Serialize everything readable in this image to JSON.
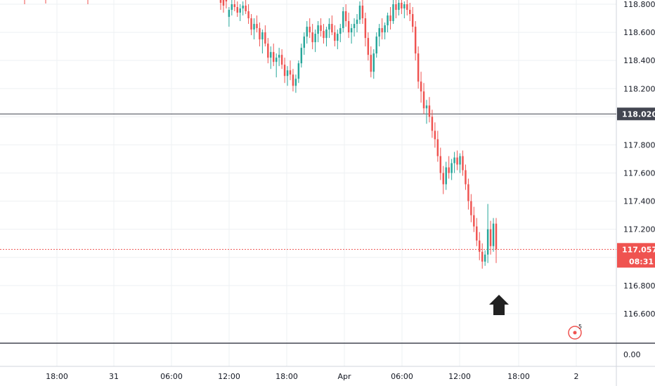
{
  "chart_data": {
    "type": "candlestick",
    "title": "",
    "xlabel": "",
    "ylabel": "",
    "ylim": [
      116.5,
      118.83
    ],
    "y_ticks": [
      "118.800",
      "118.600",
      "118.400",
      "118.200",
      "117.800",
      "117.600",
      "117.400",
      "117.200",
      "116.800",
      "116.600"
    ],
    "x_ticks": [
      "18:00",
      "31",
      "06:00",
      "12:00",
      "18:00",
      "Apr",
      "06:00",
      "12:00",
      "18:00",
      "2"
    ],
    "grid": true,
    "horizontal_line": {
      "value": 118.02,
      "label": "118.020"
    },
    "last_price": {
      "value": 117.057,
      "label": "117.057",
      "countdown": "08:31"
    },
    "volume_pane_label": "0.00",
    "candles_up_color": "#26a69a",
    "candles_down_color": "#ef5350",
    "candles": [
      [
        118.85,
        118.88,
        118.76,
        118.81
      ],
      [
        118.84,
        118.89,
        118.74,
        118.79
      ],
      [
        118.86,
        118.9,
        118.77,
        118.82
      ],
      [
        118.71,
        118.78,
        118.64,
        118.76
      ],
      [
        118.76,
        118.83,
        118.72,
        118.8
      ],
      [
        118.8,
        118.85,
        118.75,
        118.78
      ],
      [
        118.78,
        118.82,
        118.71,
        118.74
      ],
      [
        118.74,
        118.8,
        118.68,
        118.77
      ],
      [
        118.77,
        118.82,
        118.72,
        118.79
      ],
      [
        118.79,
        118.83,
        118.73,
        118.75
      ],
      [
        118.75,
        118.8,
        118.66,
        118.7
      ],
      [
        118.7,
        118.73,
        118.58,
        118.62
      ],
      [
        118.62,
        118.7,
        118.55,
        118.66
      ],
      [
        118.66,
        118.72,
        118.6,
        118.63
      ],
      [
        118.63,
        118.67,
        118.5,
        118.55
      ],
      [
        118.55,
        118.62,
        118.45,
        118.6
      ],
      [
        118.6,
        118.65,
        118.5,
        118.52
      ],
      [
        118.52,
        118.56,
        118.38,
        118.42
      ],
      [
        118.42,
        118.5,
        118.34,
        118.46
      ],
      [
        118.46,
        118.52,
        118.36,
        118.39
      ],
      [
        118.39,
        118.45,
        118.28,
        118.42
      ],
      [
        118.42,
        118.49,
        118.36,
        118.44
      ],
      [
        118.44,
        118.48,
        118.34,
        118.37
      ],
      [
        118.37,
        118.42,
        118.24,
        118.29
      ],
      [
        118.29,
        118.36,
        118.22,
        118.33
      ],
      [
        118.33,
        118.4,
        118.26,
        118.3
      ],
      [
        118.3,
        118.34,
        118.18,
        118.22
      ],
      [
        118.22,
        118.3,
        118.17,
        118.27
      ],
      [
        118.27,
        118.4,
        118.24,
        118.38
      ],
      [
        118.38,
        118.52,
        118.35,
        118.49
      ],
      [
        118.49,
        118.6,
        118.44,
        118.57
      ],
      [
        118.57,
        118.68,
        118.52,
        118.64
      ],
      [
        118.64,
        118.7,
        118.56,
        118.6
      ],
      [
        118.6,
        118.66,
        118.48,
        118.53
      ],
      [
        118.53,
        118.62,
        118.46,
        118.59
      ],
      [
        118.59,
        118.68,
        118.53,
        118.65
      ],
      [
        118.65,
        118.7,
        118.57,
        118.61
      ],
      [
        118.61,
        118.66,
        118.52,
        118.56
      ],
      [
        118.56,
        118.64,
        118.5,
        118.62
      ],
      [
        118.62,
        118.7,
        118.56,
        118.66
      ],
      [
        118.66,
        118.72,
        118.58,
        118.6
      ],
      [
        118.6,
        118.65,
        118.5,
        118.54
      ],
      [
        118.54,
        118.62,
        118.48,
        118.59
      ],
      [
        118.59,
        118.66,
        118.53,
        118.63
      ],
      [
        118.63,
        118.78,
        118.6,
        118.75
      ],
      [
        118.75,
        118.8,
        118.64,
        118.68
      ],
      [
        118.68,
        118.74,
        118.56,
        118.6
      ],
      [
        118.6,
        118.66,
        118.52,
        118.63
      ],
      [
        118.63,
        118.7,
        118.57,
        118.66
      ],
      [
        118.66,
        118.73,
        118.6,
        118.69
      ],
      [
        118.69,
        118.82,
        118.66,
        118.79
      ],
      [
        118.79,
        118.84,
        118.66,
        118.7
      ],
      [
        118.7,
        118.74,
        118.5,
        118.56
      ],
      [
        118.56,
        118.6,
        118.4,
        118.44
      ],
      [
        118.44,
        118.5,
        118.28,
        118.32
      ],
      [
        118.32,
        118.48,
        118.27,
        118.45
      ],
      [
        118.45,
        118.6,
        118.42,
        118.57
      ],
      [
        118.57,
        118.66,
        118.5,
        118.63
      ],
      [
        118.63,
        118.7,
        118.55,
        118.6
      ],
      [
        118.6,
        118.67,
        118.55,
        118.65
      ],
      [
        118.65,
        118.74,
        118.6,
        118.72
      ],
      [
        118.72,
        118.78,
        118.62,
        118.68
      ],
      [
        118.68,
        118.84,
        118.66,
        118.8
      ],
      [
        118.8,
        118.86,
        118.7,
        118.76
      ],
      [
        118.76,
        118.84,
        118.72,
        118.81
      ],
      [
        118.81,
        118.86,
        118.73,
        118.77
      ],
      [
        118.77,
        118.82,
        118.7,
        118.8
      ],
      [
        118.8,
        118.85,
        118.72,
        118.76
      ],
      [
        118.76,
        118.81,
        118.68,
        118.73
      ],
      [
        118.73,
        118.78,
        118.6,
        118.64
      ],
      [
        118.64,
        118.68,
        118.4,
        118.45
      ],
      [
        118.45,
        118.5,
        118.2,
        118.25
      ],
      [
        118.25,
        118.32,
        118.1,
        118.18
      ],
      [
        118.18,
        118.24,
        118.02,
        118.06
      ],
      [
        118.06,
        118.12,
        117.95,
        118.08
      ],
      [
        118.08,
        118.14,
        117.96,
        118.0
      ],
      [
        118.0,
        118.05,
        117.85,
        117.9
      ],
      [
        117.9,
        117.96,
        117.78,
        117.84
      ],
      [
        117.84,
        117.9,
        117.68,
        117.72
      ],
      [
        117.72,
        117.78,
        117.55,
        117.6
      ],
      [
        117.6,
        117.65,
        117.45,
        117.52
      ],
      [
        117.52,
        117.68,
        117.48,
        117.64
      ],
      [
        117.64,
        117.72,
        117.56,
        117.6
      ],
      [
        117.6,
        117.7,
        117.55,
        117.67
      ],
      [
        117.67,
        117.75,
        117.6,
        117.71
      ],
      [
        117.71,
        117.76,
        117.62,
        117.66
      ],
      [
        117.66,
        117.74,
        117.6,
        117.72
      ],
      [
        117.72,
        117.76,
        117.58,
        117.62
      ],
      [
        117.62,
        117.66,
        117.48,
        117.52
      ],
      [
        117.52,
        117.56,
        117.34,
        117.4
      ],
      [
        117.4,
        117.45,
        117.25,
        117.3
      ],
      [
        117.3,
        117.36,
        117.18,
        117.22
      ],
      [
        117.22,
        117.28,
        117.08,
        117.12
      ],
      [
        117.12,
        117.18,
        116.98,
        117.04
      ],
      [
        117.04,
        117.1,
        116.92,
        116.97
      ],
      [
        116.97,
        117.05,
        116.94,
        117.02
      ],
      [
        117.02,
        117.38,
        116.96,
        117.2
      ],
      [
        117.2,
        117.26,
        117.02,
        117.08
      ],
      [
        117.08,
        117.28,
        117.04,
        117.24
      ],
      [
        117.24,
        117.28,
        116.96,
        117.057
      ]
    ]
  }
}
